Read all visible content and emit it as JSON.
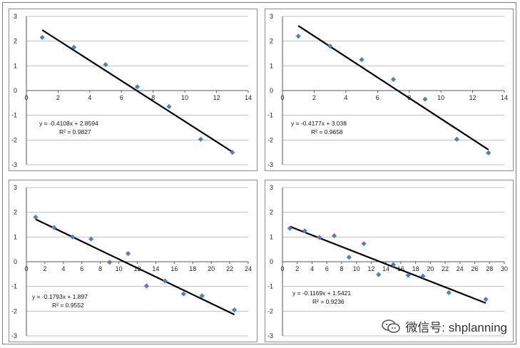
{
  "watermark": {
    "text": "微信号: shplanning",
    "icon": "wechat-icon"
  },
  "colors": {
    "marker": "#4f81bd",
    "trend": "#000000",
    "grid": "#bfbfbf",
    "axis": "#595959"
  },
  "chart_data": [
    {
      "type": "scatter",
      "title": "",
      "xlim": [
        0,
        14
      ],
      "xstep": 2,
      "ylim": [
        -3,
        3
      ],
      "ystep": 1,
      "x_ticks": [
        "0",
        "2",
        "4",
        "6",
        "8",
        "10",
        "12",
        "14"
      ],
      "y_ticks": [
        "3",
        "2",
        "1",
        "0",
        "-1",
        "-2",
        "-3"
      ],
      "points": [
        [
          1,
          2.15
        ],
        [
          3,
          1.75
        ],
        [
          5,
          1.05
        ],
        [
          7,
          0.15
        ],
        [
          9,
          -0.65
        ],
        [
          11,
          -1.97
        ],
        [
          13,
          -2.5
        ]
      ],
      "trendline": {
        "slope": -0.4108,
        "intercept": 2.8594,
        "x_range": [
          1,
          13
        ]
      },
      "equation": "y = -0.4108x + 2.8594",
      "r2": "R² = 0.9827",
      "grid": true
    },
    {
      "type": "scatter",
      "title": "",
      "xlim": [
        0,
        14
      ],
      "xstep": 2,
      "ylim": [
        -3,
        3
      ],
      "ystep": 1,
      "x_ticks": [
        "0",
        "2",
        "4",
        "6",
        "8",
        "10",
        "12",
        "14"
      ],
      "y_ticks": [
        "3",
        "2",
        "1",
        "0",
        "-1",
        "-2",
        "-3"
      ],
      "points": [
        [
          1,
          2.2
        ],
        [
          3,
          1.8
        ],
        [
          5,
          1.25
        ],
        [
          7,
          0.45
        ],
        [
          9,
          -0.35
        ],
        [
          11,
          -1.97
        ],
        [
          13,
          -2.52
        ]
      ],
      "trendline": {
        "slope": -0.4177,
        "intercept": 3.038,
        "x_range": [
          1,
          13
        ]
      },
      "equation": "y = -0.4177x + 3.038",
      "r2": "R² = 0.9658",
      "grid": true
    },
    {
      "type": "scatter",
      "title": "",
      "xlim": [
        0,
        24
      ],
      "xstep": 2,
      "ylim": [
        -3,
        3
      ],
      "ystep": 1,
      "x_ticks": [
        "0",
        "2",
        "4",
        "6",
        "8",
        "10",
        "12",
        "14",
        "16",
        "18",
        "20",
        "22",
        "24"
      ],
      "y_ticks": [
        "3",
        "2",
        "1",
        "0",
        "-1",
        "-2",
        "-3"
      ],
      "points": [
        [
          1,
          1.8
        ],
        [
          3,
          1.38
        ],
        [
          5,
          1.0
        ],
        [
          7,
          0.92
        ],
        [
          9,
          -0.02
        ],
        [
          11,
          0.33
        ],
        [
          13,
          -0.98
        ],
        [
          15,
          -0.78
        ],
        [
          17,
          -1.3
        ],
        [
          19,
          -1.38
        ],
        [
          22.5,
          -1.95
        ]
      ],
      "trendline": {
        "slope": -0.1793,
        "intercept": 1.897,
        "x_range": [
          1,
          22.5
        ]
      },
      "equation": "y = -0.1793x + 1.897",
      "r2": "R² = 0.9552",
      "grid": true
    },
    {
      "type": "scatter",
      "title": "",
      "xlim": [
        0,
        30
      ],
      "xstep": 2,
      "ylim": [
        -3,
        3
      ],
      "ystep": 1,
      "x_ticks": [
        "0",
        "2",
        "4",
        "6",
        "8",
        "10",
        "12",
        "14",
        "16",
        "18",
        "20",
        "22",
        "24",
        "26",
        "28",
        "30"
      ],
      "y_ticks": [
        "3",
        "2",
        "1",
        "0",
        "-1",
        "-2",
        "-3"
      ],
      "points": [
        [
          1,
          1.35
        ],
        [
          3,
          1.25
        ],
        [
          5,
          0.98
        ],
        [
          7,
          1.05
        ],
        [
          9,
          0.18
        ],
        [
          11,
          0.73
        ],
        [
          13,
          -0.52
        ],
        [
          15,
          -0.12
        ],
        [
          17,
          -0.55
        ],
        [
          19,
          -0.58
        ],
        [
          22.5,
          -1.25
        ],
        [
          27.5,
          -1.52
        ]
      ],
      "trendline": {
        "slope": -0.1169,
        "intercept": 1.5421,
        "x_range": [
          1,
          27.5
        ]
      },
      "equation": "y = -0.1169x + 1.5421",
      "r2": "R² = 0.9236",
      "grid": true
    }
  ]
}
